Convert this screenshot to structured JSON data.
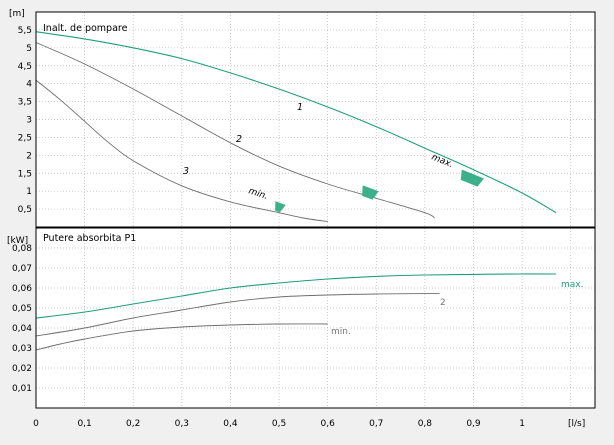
{
  "colors": {
    "background": "#f0f0f0",
    "plot_background": "#ffffff",
    "grid": "#b8b8b8",
    "frame": "#000000",
    "max_curve": "#1f9e7e",
    "other_curves": "#6e6e6e",
    "markers": "#3cb08a"
  },
  "chart_data": [
    {
      "type": "line",
      "title": "Inalt. de pompare",
      "ylabel": "[m]",
      "ylim": [
        0,
        6
      ],
      "yticks": [
        "0,5",
        "1",
        "1,5",
        "2",
        "2,5",
        "3",
        "3,5",
        "4",
        "4,5",
        "5",
        "5,5"
      ],
      "ytick_values": [
        0.5,
        1,
        1.5,
        2,
        2.5,
        3,
        3.5,
        4,
        4.5,
        5,
        5.5
      ],
      "xlim": [
        0,
        1.15
      ],
      "grid": true,
      "series": [
        {
          "name": "1",
          "curve_label": "max.",
          "color_key": "max_curve",
          "x": [
            0,
            0.1,
            0.2,
            0.3,
            0.4,
            0.5,
            0.6,
            0.7,
            0.8,
            0.9,
            1.0,
            1.07
          ],
          "y": [
            5.45,
            5.25,
            5.0,
            4.7,
            4.3,
            3.85,
            3.35,
            2.8,
            2.2,
            1.6,
            0.95,
            0.4
          ]
        },
        {
          "name": "2",
          "x": [
            0,
            0.1,
            0.2,
            0.3,
            0.4,
            0.5,
            0.6,
            0.7,
            0.8,
            0.82
          ],
          "y": [
            5.15,
            4.55,
            3.85,
            3.1,
            2.35,
            1.7,
            1.2,
            0.8,
            0.4,
            0.25
          ]
        },
        {
          "name": "3",
          "curve_label": "min.",
          "x": [
            0,
            0.05,
            0.1,
            0.15,
            0.2,
            0.3,
            0.4,
            0.5,
            0.55,
            0.6
          ],
          "y": [
            4.1,
            3.55,
            2.95,
            2.35,
            1.85,
            1.15,
            0.7,
            0.4,
            0.25,
            0.15
          ]
        }
      ],
      "markers": [
        {
          "x": 0.5,
          "y": 0.55,
          "rotation": 20
        },
        {
          "x": 0.685,
          "y": 0.95,
          "rotation": 20
        },
        {
          "x": 0.895,
          "y": 1.35,
          "rotation": 22
        }
      ]
    },
    {
      "type": "line",
      "title": "Putere absorbita P1",
      "ylabel": "[kW]",
      "ylim": [
        0,
        0.09
      ],
      "yticks": [
        "0,01",
        "0,02",
        "0,03",
        "0,04",
        "0,05",
        "0,06",
        "0,07",
        "0,08"
      ],
      "ytick_values": [
        0.01,
        0.02,
        0.03,
        0.04,
        0.05,
        0.06,
        0.07,
        0.08
      ],
      "xlabel": "[l/s]",
      "xlim": [
        0,
        1.15
      ],
      "xticks": [
        "0",
        "0,1",
        "0,2",
        "0,3",
        "0,4",
        "0,5",
        "0,6",
        "0,7",
        "0,8",
        "0,9",
        "1"
      ],
      "xtick_values": [
        0,
        0.1,
        0.2,
        0.3,
        0.4,
        0.5,
        0.6,
        0.7,
        0.8,
        0.9,
        1.0
      ],
      "grid": true,
      "series": [
        {
          "name": "max.",
          "color_key": "max_curve",
          "x": [
            0,
            0.1,
            0.2,
            0.3,
            0.4,
            0.5,
            0.6,
            0.7,
            0.8,
            0.9,
            1.0,
            1.07
          ],
          "y": [
            0.045,
            0.048,
            0.052,
            0.056,
            0.06,
            0.0625,
            0.0645,
            0.0658,
            0.0665,
            0.0668,
            0.067,
            0.067
          ]
        },
        {
          "name": "2",
          "x": [
            0,
            0.1,
            0.2,
            0.3,
            0.4,
            0.5,
            0.6,
            0.7,
            0.8,
            0.83
          ],
          "y": [
            0.036,
            0.04,
            0.045,
            0.049,
            0.053,
            0.0555,
            0.0565,
            0.057,
            0.0572,
            0.0572
          ]
        },
        {
          "name": "min.",
          "x": [
            0,
            0.05,
            0.1,
            0.2,
            0.3,
            0.4,
            0.5,
            0.6
          ],
          "y": [
            0.029,
            0.032,
            0.0345,
            0.0385,
            0.0405,
            0.0415,
            0.042,
            0.042
          ]
        }
      ]
    }
  ]
}
